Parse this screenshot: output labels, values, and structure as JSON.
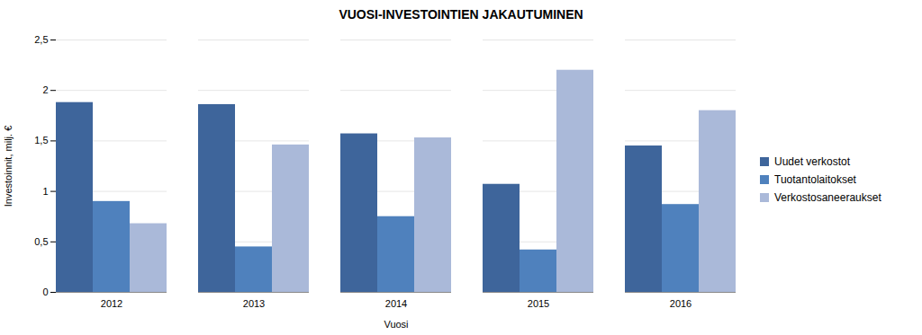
{
  "chart_data": {
    "type": "bar",
    "title": "VUOSI-INVESTOINTIEN JAKAUTUMINEN",
    "x_label": "Vuosi",
    "y_label": "Investoinnit, milj. €",
    "categories": [
      "2012",
      "2013",
      "2014",
      "2015",
      "2016"
    ],
    "series": [
      {
        "name": "Uudet verkostot",
        "color": "#3e659b",
        "values": [
          1.88,
          1.86,
          1.57,
          1.07,
          1.45
        ]
      },
      {
        "name": "Tuotantolaitokset",
        "color": "#4f81bd",
        "values": [
          0.9,
          0.45,
          0.75,
          0.42,
          0.87
        ]
      },
      {
        "name": "Verkostosaneeraukset",
        "color": "#aab9d9",
        "values": [
          0.68,
          1.46,
          1.53,
          2.2,
          1.8
        ]
      }
    ],
    "ylim": [
      0,
      2.5
    ],
    "yticks": [
      0,
      {
        "value": 0.5,
        "label": "0,5"
      },
      1,
      {
        "value": 1.5,
        "label": "1,5"
      },
      2,
      {
        "value": 2.5,
        "label": "2,5"
      }
    ],
    "grid": true,
    "legend": "right"
  }
}
